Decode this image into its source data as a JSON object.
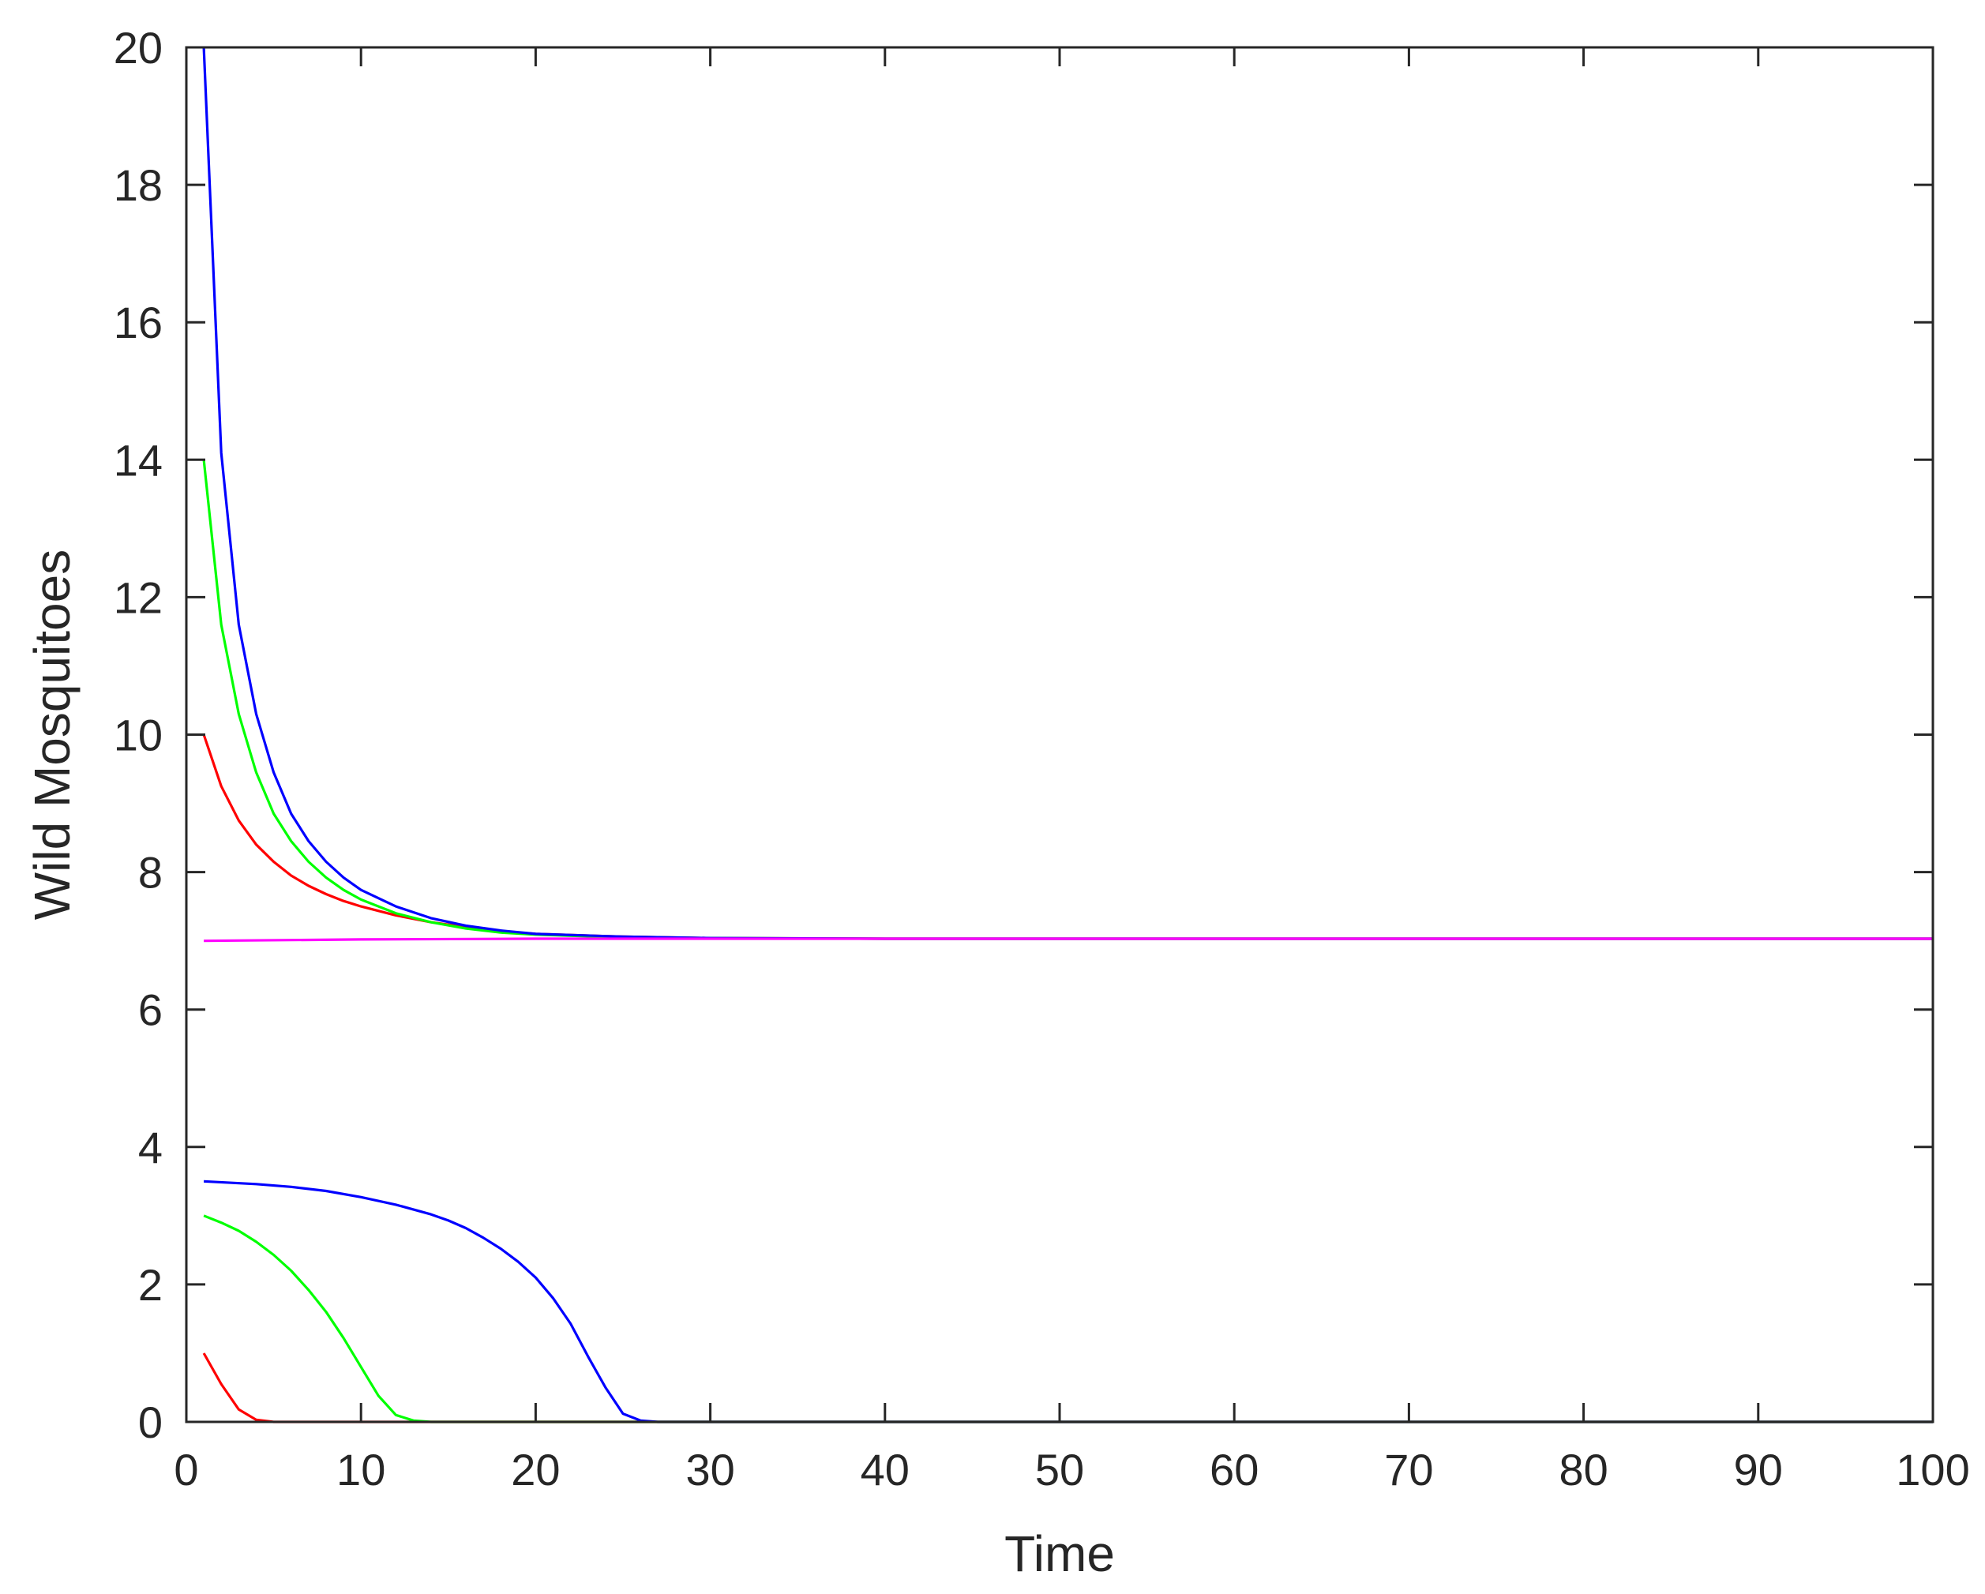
{
  "chart_data": {
    "type": "line",
    "title": "",
    "xlabel": "Time",
    "ylabel": "Wild Mosquitoes",
    "xlim": [
      0,
      100
    ],
    "ylim": [
      0,
      20
    ],
    "xticks": [
      0,
      10,
      20,
      30,
      40,
      50,
      60,
      70,
      80,
      90,
      100
    ],
    "yticks": [
      0,
      2,
      4,
      6,
      8,
      10,
      12,
      14,
      16,
      18,
      20
    ],
    "grid": false,
    "legend": "none",
    "colors": {
      "red": "#ff0000",
      "green": "#00ff00",
      "blue": "#0000ff",
      "magenta": "#ff00ff",
      "axis": "#262626"
    },
    "series": [
      {
        "color": "#ff0000",
        "x": [
          1,
          2,
          3,
          4,
          5,
          6,
          7,
          8,
          9,
          10,
          12,
          14,
          16,
          18,
          20,
          25,
          30,
          40,
          100
        ],
        "y": [
          10,
          9.25,
          8.75,
          8.4,
          8.15,
          7.95,
          7.8,
          7.68,
          7.58,
          7.5,
          7.37,
          7.27,
          7.2,
          7.14,
          7.1,
          7.06,
          7.04,
          7.03,
          7.03
        ]
      },
      {
        "color": "#00ff00",
        "x": [
          1,
          2,
          3,
          4,
          5,
          6,
          7,
          8,
          9,
          10,
          12,
          14,
          16,
          18,
          20,
          25,
          30,
          40,
          100
        ],
        "y": [
          14,
          11.6,
          10.3,
          9.45,
          8.85,
          8.45,
          8.15,
          7.92,
          7.74,
          7.6,
          7.4,
          7.27,
          7.18,
          7.12,
          7.09,
          7.05,
          7.04,
          7.03,
          7.03
        ]
      },
      {
        "color": "#0000ff",
        "x": [
          1,
          2,
          3,
          4,
          5,
          6,
          7,
          8,
          9,
          10,
          12,
          14,
          16,
          18,
          20,
          25,
          30,
          40,
          100
        ],
        "y": [
          20,
          14.1,
          11.6,
          10.3,
          9.45,
          8.85,
          8.45,
          8.15,
          7.92,
          7.74,
          7.5,
          7.33,
          7.22,
          7.15,
          7.1,
          7.06,
          7.04,
          7.03,
          7.03
        ]
      },
      {
        "color": "#ff00ff",
        "x": [
          1,
          10,
          20,
          30,
          40,
          100
        ],
        "y": [
          7.0,
          7.02,
          7.03,
          7.03,
          7.03,
          7.03
        ]
      },
      {
        "color": "#ff0000",
        "x": [
          1,
          2,
          3,
          4,
          5,
          6,
          100
        ],
        "y": [
          1.0,
          0.55,
          0.18,
          0.03,
          0.0,
          0.0,
          0.0
        ]
      },
      {
        "color": "#00ff00",
        "x": [
          1,
          2,
          3,
          4,
          5,
          6,
          7,
          8,
          9,
          10,
          11,
          12,
          13,
          14,
          100
        ],
        "y": [
          3.0,
          2.9,
          2.78,
          2.62,
          2.43,
          2.2,
          1.92,
          1.6,
          1.22,
          0.8,
          0.38,
          0.1,
          0.02,
          0.0,
          0.0
        ]
      },
      {
        "color": "#0000ff",
        "x": [
          1,
          4,
          6,
          8,
          10,
          12,
          14,
          15,
          16,
          17,
          18,
          19,
          20,
          21,
          22,
          23,
          24,
          25,
          26,
          27,
          100
        ],
        "y": [
          3.5,
          3.46,
          3.42,
          3.36,
          3.27,
          3.16,
          3.02,
          2.93,
          2.82,
          2.68,
          2.52,
          2.33,
          2.1,
          1.8,
          1.43,
          0.95,
          0.5,
          0.12,
          0.02,
          0.0,
          0.0
        ]
      }
    ]
  }
}
